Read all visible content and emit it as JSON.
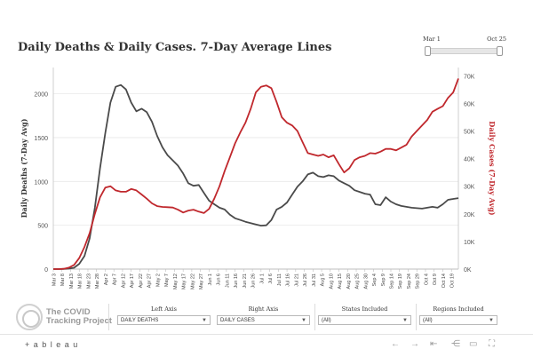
{
  "header": {
    "title": "Daily Deaths & Daily Cases. 7-Day Average Lines",
    "slider": {
      "start_label": "Mar 1",
      "end_label": "Oct 25"
    }
  },
  "chart_data": {
    "type": "line",
    "title": "Daily Deaths & Daily Cases. 7-Day Average Lines",
    "ylabel_left": "Daily Deaths (7-Day Avg)",
    "ylabel_right": "Daily Cases (7-Day Avg)",
    "ylim_left": [
      0,
      2300
    ],
    "ylim_right": [
      0,
      73000
    ],
    "left_ticks": [
      "0",
      "500",
      "1000",
      "1500",
      "2000"
    ],
    "right_ticks": [
      "0K",
      "10K",
      "20K",
      "30K",
      "40K",
      "50K",
      "60K",
      "70K"
    ],
    "x_ticks": [
      "Mar 3",
      "Mar 8",
      "Mar 13",
      "Mar 18",
      "Mar 23",
      "Mar 28",
      "Apr 2",
      "Apr 7",
      "Apr 12",
      "Apr 17",
      "Apr 22",
      "Apr 27",
      "May 2",
      "May 7",
      "May 12",
      "May 17",
      "May 22",
      "May 27",
      "Jun 1",
      "Jun 6",
      "Jun 11",
      "Jun 16",
      "Jun 21",
      "Jun 26",
      "Jul 1",
      "Jul 6",
      "Jul 11",
      "Jul 16",
      "Jul 21",
      "Jul 26",
      "Jul 31",
      "Aug 5",
      "Aug 10",
      "Aug 15",
      "Aug 20",
      "Aug 25",
      "Aug 30",
      "Sep 4",
      "Sep 9",
      "Sep 14",
      "Sep 19",
      "Sep 24",
      "Sep 29",
      "Oct 4",
      "Oct 9",
      "Oct 14",
      "Oct 19"
    ],
    "grid": true,
    "series": [
      {
        "name": "DAILY DEATHS",
        "axis": "left",
        "color": "#4a4a4a",
        "x": [
          0,
          3,
          6,
          9,
          12,
          15,
          18,
          21,
          24,
          27,
          30,
          33,
          36,
          39,
          42,
          45,
          48,
          51,
          54,
          57,
          60,
          63,
          66,
          69,
          72,
          75,
          78,
          81,
          84,
          87,
          90,
          93,
          96,
          99,
          102,
          105,
          108,
          111,
          114,
          117,
          120,
          123,
          126,
          129,
          132,
          135,
          138,
          141,
          144,
          147,
          150,
          153,
          156,
          159,
          162,
          165,
          168,
          171,
          174,
          177,
          180,
          183,
          186,
          189,
          192,
          195,
          198,
          201,
          204,
          207,
          210,
          213,
          216,
          219,
          222,
          225,
          228,
          231,
          234
        ],
        "values": [
          0,
          0,
          2,
          5,
          15,
          60,
          150,
          350,
          700,
          1150,
          1550,
          1900,
          2080,
          2100,
          2050,
          1900,
          1800,
          1830,
          1790,
          1680,
          1520,
          1390,
          1300,
          1240,
          1180,
          1090,
          980,
          950,
          960,
          870,
          780,
          740,
          700,
          680,
          620,
          580,
          560,
          540,
          525,
          510,
          495,
          500,
          560,
          680,
          710,
          760,
          850,
          940,
          1000,
          1080,
          1100,
          1060,
          1050,
          1070,
          1060,
          1010,
          980,
          950,
          900,
          880,
          860,
          850,
          740,
          730,
          820,
          770,
          740,
          720,
          710,
          700,
          695,
          690,
          700,
          710,
          700,
          740,
          790,
          800,
          810
        ]
      },
      {
        "name": "DAILY CASES",
        "axis": "right",
        "color": "#c0282d",
        "x": [
          0,
          3,
          6,
          9,
          12,
          15,
          18,
          21,
          24,
          27,
          30,
          33,
          36,
          39,
          42,
          45,
          48,
          51,
          54,
          57,
          60,
          63,
          66,
          69,
          72,
          75,
          78,
          81,
          84,
          87,
          90,
          93,
          96,
          99,
          102,
          105,
          108,
          111,
          114,
          117,
          120,
          123,
          126,
          129,
          132,
          135,
          138,
          141,
          144,
          147,
          150,
          153,
          156,
          159,
          162,
          165,
          168,
          171,
          174,
          177,
          180,
          183,
          186,
          189,
          192,
          195,
          198,
          201,
          204,
          207,
          210,
          213,
          216,
          219,
          222,
          225,
          228,
          231,
          234
        ],
        "values": [
          0,
          0,
          100,
          500,
          1500,
          4000,
          8000,
          13000,
          20000,
          26000,
          29500,
          30000,
          28500,
          28000,
          28000,
          29000,
          28500,
          27000,
          25500,
          23800,
          22800,
          22500,
          22400,
          22300,
          21500,
          20500,
          21200,
          21500,
          20800,
          20300,
          21800,
          25500,
          30000,
          35500,
          40500,
          45500,
          49500,
          53000,
          58000,
          64000,
          66000,
          66500,
          65500,
          60500,
          55000,
          53000,
          52000,
          50000,
          46000,
          42000,
          41500,
          41000,
          41500,
          40500,
          41200,
          38000,
          35000,
          36500,
          39500,
          40500,
          41000,
          42000,
          41800,
          42500,
          43500,
          43500,
          43000,
          44000,
          45000,
          48000,
          50000,
          52000,
          54000,
          57000,
          58000,
          59000,
          62000,
          64000,
          69000
        ]
      }
    ]
  },
  "footer": {
    "logo_text": "The COVID Tracking Project",
    "left_axis": {
      "label": "Left Axis",
      "value": "DAILY DEATHS"
    },
    "right_axis": {
      "label": "Right Axis",
      "value": "DAILY CASES"
    },
    "states": {
      "label": "States Included",
      "value": "(All)"
    },
    "regions": {
      "label": "Regions Included",
      "value": "(All)"
    }
  },
  "toolbar": {
    "brand": "+ a b l e a u"
  }
}
